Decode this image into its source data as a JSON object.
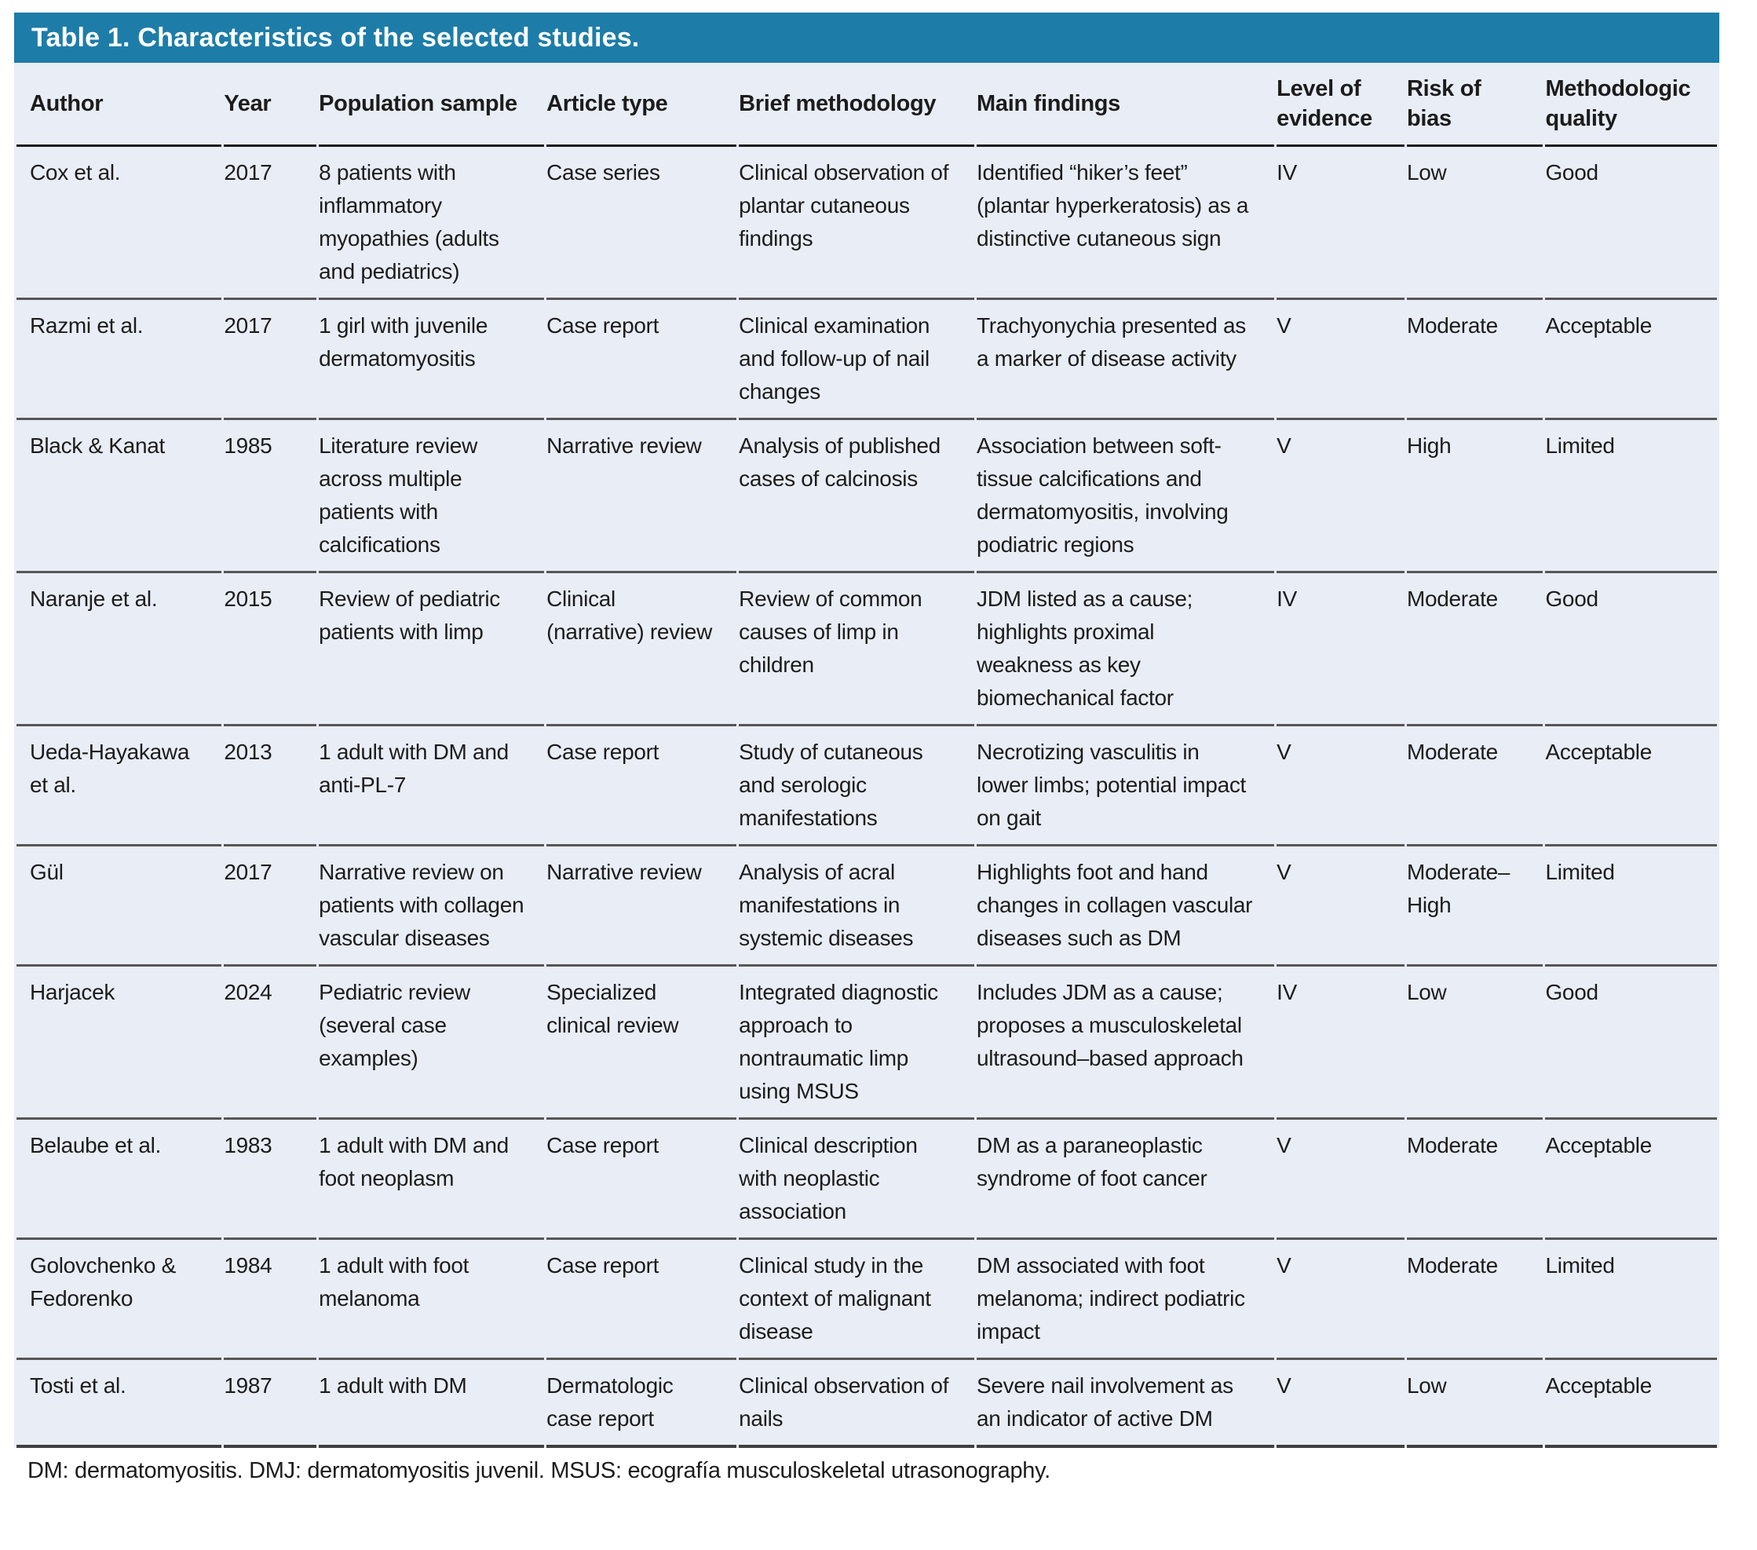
{
  "colors": {
    "accent": "#1d7da8",
    "body_bg": "#e9edf6",
    "header_text": "#ffffff",
    "body_text": "#1c1c1c"
  },
  "table": {
    "title": "Table 1. Characteristics of the selected studies.",
    "columns": [
      "Author",
      "Year",
      "Population sample",
      "Article type",
      "Brief methodology",
      "Main findings",
      "Level of evidence",
      "Risk of bias",
      "Methodologic quality"
    ],
    "rows": [
      {
        "author": "Cox et al.",
        "year": "2017",
        "population": "8 patients with inflammatory myopathies (adults and pediatrics)",
        "article_type": "Case series",
        "methodology": "Clinical observation of plantar cutaneous findings",
        "findings": "Identified “hiker’s feet” (plantar hyperkeratosis) as a distinctive cutaneous sign",
        "evidence": "IV",
        "bias": "Low",
        "quality": "Good"
      },
      {
        "author": "Razmi et al.",
        "year": "2017",
        "population": "1 girl with juvenile dermatomyositis",
        "article_type": "Case report",
        "methodology": "Clinical examination and follow-up of nail changes",
        "findings": "Trachyonychia presented as a marker of disease activity",
        "evidence": "V",
        "bias": "Moderate",
        "quality": "Acceptable"
      },
      {
        "author": "Black & Kanat",
        "year": "1985",
        "population": "Literature review across multiple patients with calcifications",
        "article_type": "Narrative review",
        "methodology": "Analysis of published cases of calcinosis",
        "findings": "Association between soft-tissue calcifications and dermatomyositis, involving podiatric regions",
        "evidence": "V",
        "bias": "High",
        "quality": "Limited"
      },
      {
        "author": "Naranje et al.",
        "year": "2015",
        "population": "Review of pediatric patients with limp",
        "article_type": "Clinical (narrative) review",
        "methodology": "Review of common causes of limp in children",
        "findings": "JDM listed as a cause; highlights proximal weakness as key biomechanical factor",
        "evidence": "IV",
        "bias": "Moderate",
        "quality": "Good"
      },
      {
        "author": "Ueda-Hayakawa et al.",
        "year": "2013",
        "population": "1 adult with DM and anti-PL-7",
        "article_type": "Case report",
        "methodology": "Study of cutaneous and serologic manifestations",
        "findings": "Necrotizing vasculitis in lower limbs; potential impact on gait",
        "evidence": "V",
        "bias": "Moderate",
        "quality": "Acceptable"
      },
      {
        "author": "Gül",
        "year": "2017",
        "population": "Narrative review on patients with collagen vascular diseases",
        "article_type": "Narrative review",
        "methodology": "Analysis of acral manifestations in systemic diseases",
        "findings": "Highlights foot and hand changes in collagen vascular diseases such as DM",
        "evidence": "V",
        "bias": "Moderate–High",
        "quality": "Limited"
      },
      {
        "author": "Harjacek",
        "year": "2024",
        "population": "Pediatric review (several case examples)",
        "article_type": "Specialized clinical review",
        "methodology": "Integrated diagnostic approach to nontraumatic limp using MSUS",
        "findings": "Includes JDM as a cause; proposes a musculoskeletal ultrasound–based approach",
        "evidence": "IV",
        "bias": "Low",
        "quality": "Good"
      },
      {
        "author": "Belaube et al.",
        "year": "1983",
        "population": "1 adult with DM and foot neoplasm",
        "article_type": "Case report",
        "methodology": "Clinical description with neoplastic association",
        "findings": "DM as a paraneoplastic syndrome of foot cancer",
        "evidence": "V",
        "bias": "Moderate",
        "quality": "Acceptable"
      },
      {
        "author": "Golovchenko & Fedorenko",
        "year": "1984",
        "population": "1 adult with foot melanoma",
        "article_type": "Case report",
        "methodology": "Clinical study in the context of malignant disease",
        "findings": "DM associated with foot melanoma; indirect podiatric impact",
        "evidence": "V",
        "bias": "Moderate",
        "quality": "Limited"
      },
      {
        "author": "Tosti et al.",
        "year": "1987",
        "population": "1 adult with DM",
        "article_type": "Dermatologic case report",
        "methodology": "Clinical observation of nails",
        "findings": "Severe nail involvement as an indicator of active DM",
        "evidence": "V",
        "bias": "Low",
        "quality": "Acceptable"
      }
    ],
    "footnote": "DM: dermatomyositis. DMJ: dermatomyositis juvenil. MSUS: ecografía musculoskeletal utrasonography."
  }
}
